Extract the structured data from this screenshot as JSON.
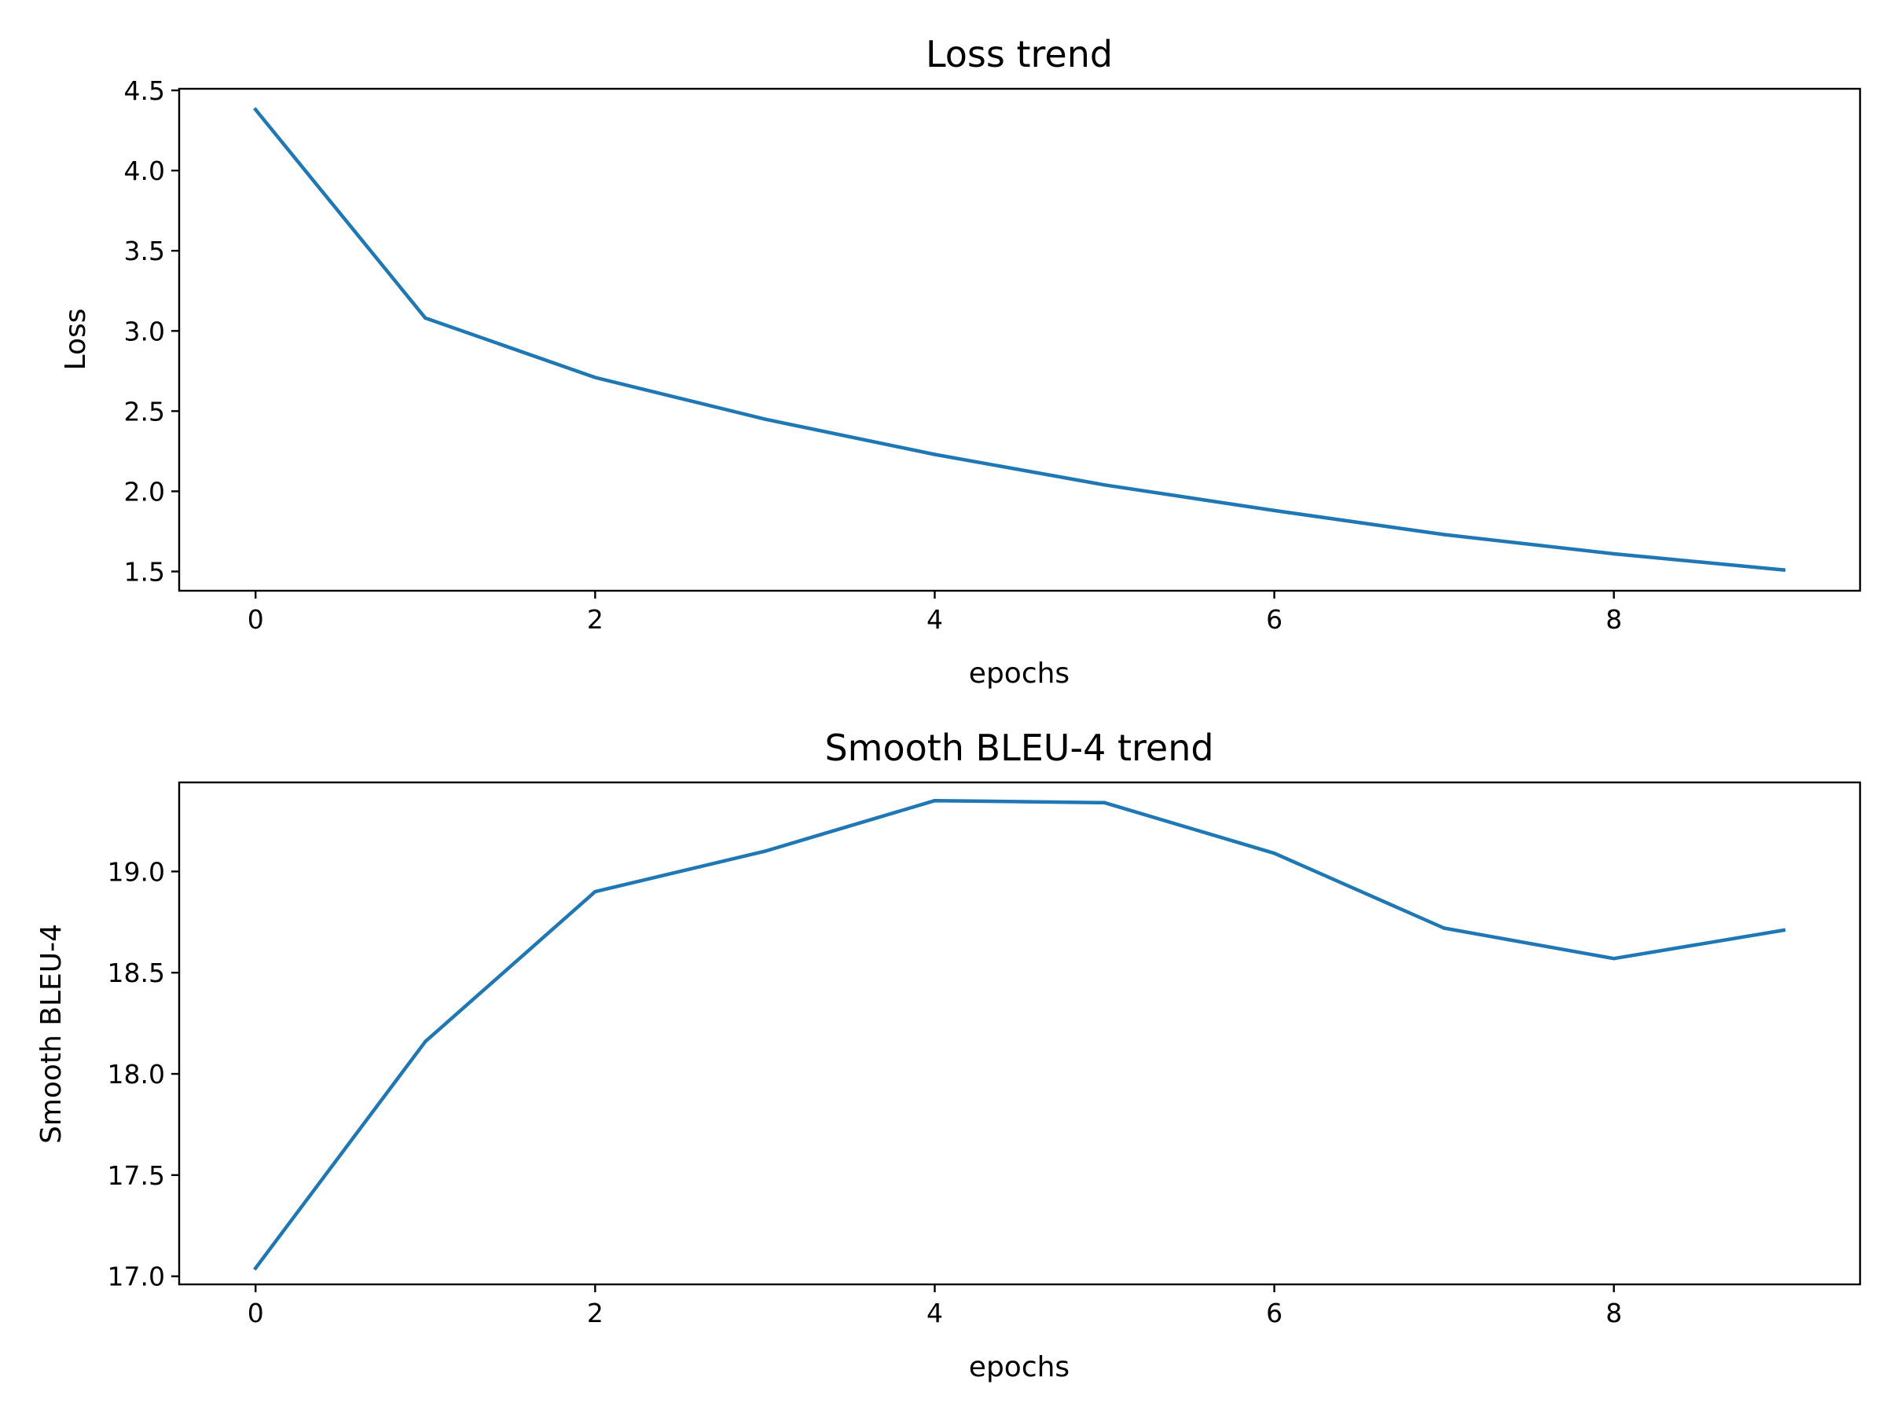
{
  "chart_data": [
    {
      "type": "line",
      "title": "Loss trend",
      "xlabel": "epochs",
      "ylabel": "Loss",
      "xlim": [
        -0.45,
        9.45
      ],
      "ylim": [
        1.38,
        4.51
      ],
      "xticks": [
        0,
        2,
        4,
        6,
        8
      ],
      "xtick_labels": [
        "0",
        "2",
        "4",
        "6",
        "8"
      ],
      "yticks": [
        1.5,
        2.0,
        2.5,
        3.0,
        3.5,
        4.0,
        4.5
      ],
      "ytick_labels": [
        "1.5",
        "2.0",
        "2.5",
        "3.0",
        "3.5",
        "4.0",
        "4.5"
      ],
      "grid": false,
      "color": "#1f77b4",
      "x": [
        0,
        1,
        2,
        3,
        4,
        5,
        6,
        7,
        8,
        9
      ],
      "values": [
        4.38,
        3.08,
        2.71,
        2.45,
        2.23,
        2.04,
        1.88,
        1.73,
        1.61,
        1.51
      ]
    },
    {
      "type": "line",
      "title": "Smooth BLEU-4 trend",
      "xlabel": "epochs",
      "ylabel": "Smooth BLEU-4",
      "xlim": [
        -0.45,
        9.45
      ],
      "ylim": [
        16.96,
        19.44
      ],
      "xticks": [
        0,
        2,
        4,
        6,
        8
      ],
      "xtick_labels": [
        "0",
        "2",
        "4",
        "6",
        "8"
      ],
      "yticks": [
        17.0,
        17.5,
        18.0,
        18.5,
        19.0
      ],
      "ytick_labels": [
        "17.0",
        "17.5",
        "18.0",
        "18.5",
        "19.0"
      ],
      "grid": false,
      "color": "#1f77b4",
      "x": [
        0,
        1,
        2,
        3,
        4,
        5,
        6,
        7,
        8,
        9
      ],
      "values": [
        17.04,
        18.16,
        18.9,
        19.1,
        19.35,
        19.34,
        19.09,
        18.72,
        18.57,
        18.71
      ]
    }
  ]
}
